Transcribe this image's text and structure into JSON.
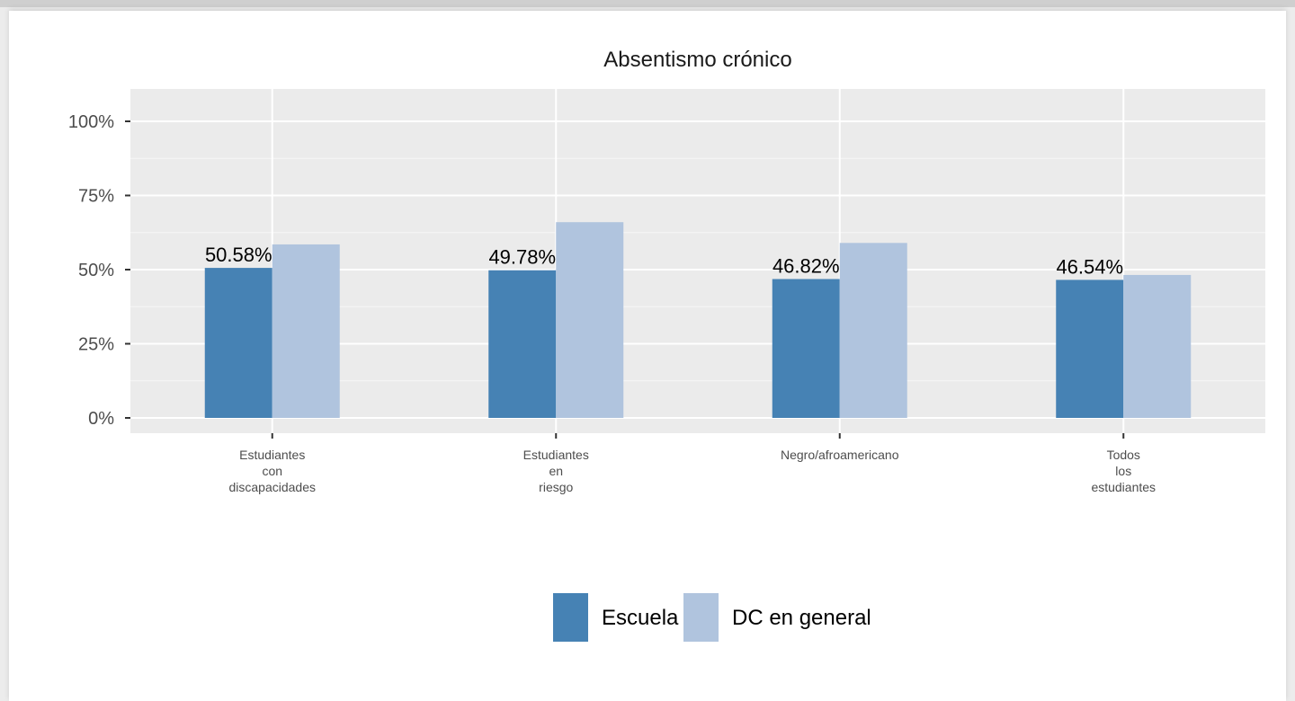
{
  "chart_data": {
    "type": "bar",
    "title": "Absentismo crónico",
    "xlabel": "",
    "ylabel": "",
    "categories": [
      [
        "Estudiantes",
        "con",
        "discapacidades"
      ],
      [
        "Estudiantes",
        "en",
        "riesgo"
      ],
      [
        "Negro/afroamericano"
      ],
      [
        "Todos",
        "los",
        "estudiantes"
      ]
    ],
    "series": [
      {
        "name": "Escuela",
        "color": "#4682b4",
        "values": [
          50.58,
          49.78,
          46.82,
          46.54
        ],
        "labels": [
          "50.58%",
          "49.78%",
          "46.82%",
          "46.54%"
        ]
      },
      {
        "name": "DC en general",
        "color": "#b0c4de",
        "values": [
          58.5,
          66.0,
          59.0,
          48.2
        ]
      }
    ],
    "ylim": [
      0,
      100
    ],
    "yticks": [
      0,
      25,
      50,
      75,
      100
    ],
    "ytick_labels": [
      "0%",
      "25%",
      "50%",
      "75%",
      "100%"
    ],
    "grid": true,
    "legend_position": "bottom"
  }
}
